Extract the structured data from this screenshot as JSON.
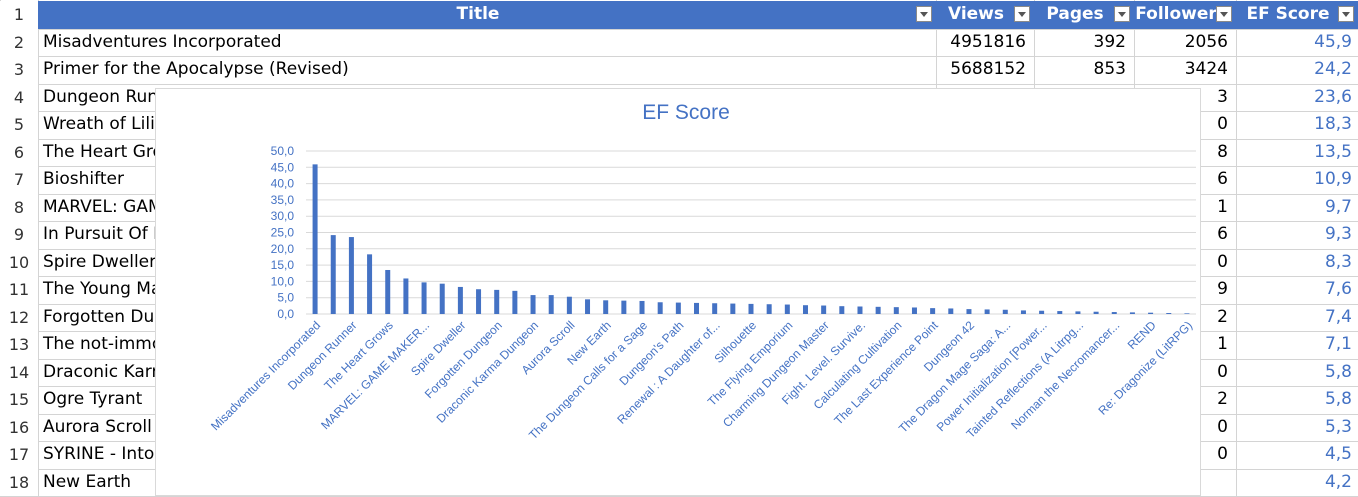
{
  "columns": [
    {
      "key": "title",
      "label": "Title"
    },
    {
      "key": "views",
      "label": "Views"
    },
    {
      "key": "pages",
      "label": "Pages"
    },
    {
      "key": "followers",
      "label": "Follower"
    },
    {
      "key": "ef",
      "label": "EF Score"
    }
  ],
  "row_numbers": [
    "1",
    "2",
    "3",
    "4",
    "5",
    "6",
    "7",
    "8",
    "9",
    "10",
    "11",
    "12",
    "13",
    "14",
    "15",
    "16",
    "17",
    "18"
  ],
  "rows": [
    {
      "title": "Misadventures Incorporated",
      "views": "4951816",
      "pages": "392",
      "followers": "2056",
      "ef": "45,9"
    },
    {
      "title": "Primer for the Apocalypse (Revised)",
      "views": "5688152",
      "pages": "853",
      "followers": "3424",
      "ef": "24,2"
    },
    {
      "title": "Dungeon Runn",
      "views": "",
      "pages": "",
      "followers": "3",
      "ef": "23,6"
    },
    {
      "title": "Wreath of Lili",
      "views": "",
      "pages": "",
      "followers": "0",
      "ef": "18,3"
    },
    {
      "title": "The Heart Gro",
      "views": "",
      "pages": "",
      "followers": "8",
      "ef": "13,5"
    },
    {
      "title": "Bioshifter",
      "views": "",
      "pages": "",
      "followers": "6",
      "ef": "10,9"
    },
    {
      "title": "MARVEL: GAM",
      "views": "",
      "pages": "",
      "followers": "1",
      "ef": "9,7"
    },
    {
      "title": "In Pursuit Of M",
      "views": "",
      "pages": "",
      "followers": "6",
      "ef": "9,3"
    },
    {
      "title": "Spire Dweller",
      "views": "",
      "pages": "",
      "followers": "0",
      "ef": "8,3"
    },
    {
      "title": "The Young Ma",
      "views": "",
      "pages": "",
      "followers": "9",
      "ef": "7,6"
    },
    {
      "title": "Forgotten Dun",
      "views": "",
      "pages": "",
      "followers": "2",
      "ef": "7,4"
    },
    {
      "title": "The not-immo",
      "views": "",
      "pages": "",
      "followers": "1",
      "ef": "7,1"
    },
    {
      "title": "Draconic Karr",
      "views": "",
      "pages": "",
      "followers": "0",
      "ef": "5,8"
    },
    {
      "title": "Ogre Tyrant",
      "views": "",
      "pages": "",
      "followers": "2",
      "ef": "5,8"
    },
    {
      "title": "Aurora Scroll",
      "views": "",
      "pages": "",
      "followers": "0",
      "ef": "5,3"
    },
    {
      "title": "SYRINE - Into",
      "views": "",
      "pages": "",
      "followers": "0",
      "ef": "4,5"
    },
    {
      "title": "New Earth",
      "views": "",
      "pages": "",
      "followers": "",
      "ef": "4,2"
    }
  ],
  "colors": {
    "header": "#4472c4",
    "bar": "#4472c4",
    "ef_text": "#4472c4"
  },
  "chart_data": {
    "type": "bar",
    "title": "EF Score",
    "ylim": [
      0,
      50
    ],
    "yticks": [
      "0,0",
      "5,0",
      "10,0",
      "15,0",
      "20,0",
      "25,0",
      "30,0",
      "35,0",
      "40,0",
      "45,0",
      "50,0"
    ],
    "grid": true,
    "categories": [
      "Misadventures Incorporated",
      "",
      "Dungeon Runner",
      "",
      "The Heart Grows",
      "",
      "MARVEL: GAME MAKER...",
      "",
      "Spire Dweller",
      "",
      "Forgotten Dungeon",
      "",
      "Draconic Karma Dungeon",
      "",
      "Aurora Scroll",
      "",
      "New Earth",
      "",
      "The Dungeon Calls for a Sage",
      "",
      "Dungeon's Path",
      "",
      "Renewal : A Daughter of...",
      "",
      "Silhouette",
      "",
      "The Flying Emporium",
      "",
      "Charming Dungeon Master",
      "",
      "Fight. Level. Survive.",
      "",
      "Calculating Cultivation",
      "",
      "The Last Experience Point",
      "",
      "Dungeon 42",
      "",
      "The Dragon Mage Saga: A...",
      "",
      "Power Initialization [Power...",
      "",
      "Tainted Reflections (A Litrpg...",
      "",
      "Norman the Necromancer...",
      "",
      "REND",
      "",
      "Re: Dragonize (LitRPG)"
    ],
    "values": [
      45.9,
      24.2,
      23.6,
      18.3,
      13.5,
      10.9,
      9.7,
      9.3,
      8.3,
      7.6,
      7.4,
      7.1,
      5.8,
      5.8,
      5.3,
      4.5,
      4.2,
      4.1,
      4.0,
      3.6,
      3.5,
      3.4,
      3.3,
      3.2,
      3.1,
      3.0,
      2.9,
      2.7,
      2.6,
      2.4,
      2.3,
      2.2,
      2.1,
      2.0,
      1.8,
      1.7,
      1.5,
      1.4,
      1.3,
      1.1,
      1.0,
      0.9,
      0.8,
      0.7,
      0.6,
      0.5,
      0.4,
      0.3,
      0.2
    ]
  }
}
